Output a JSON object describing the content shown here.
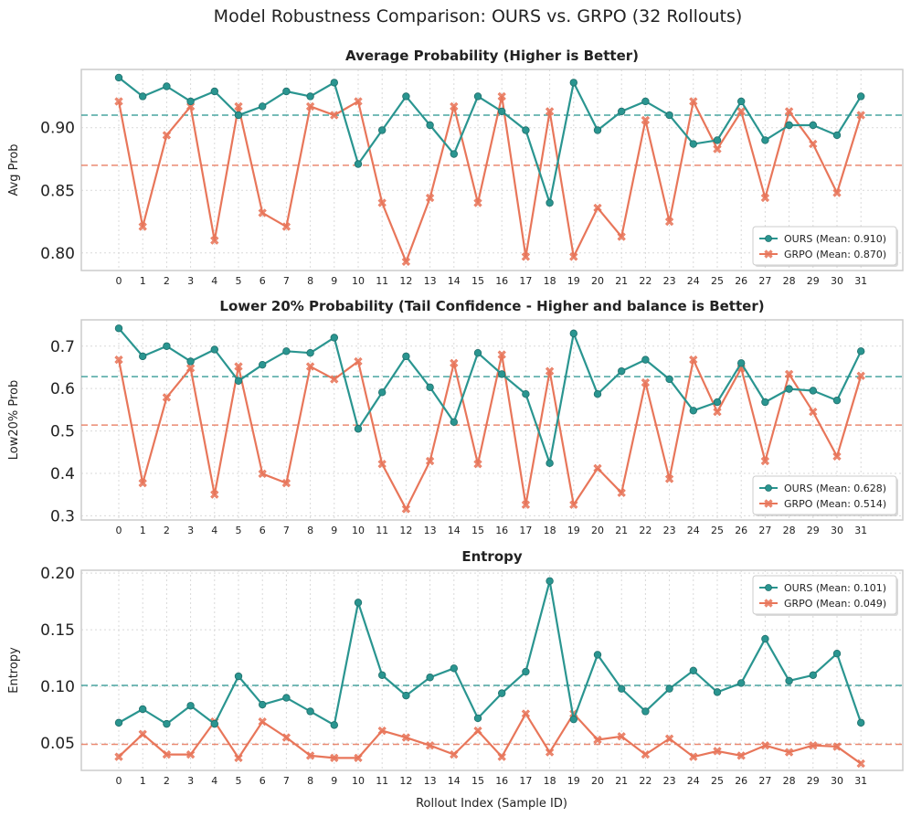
{
  "chart_data": {
    "type": "line",
    "suptitle": "Model Robustness Comparison: OURS vs. GRPO (32 Rollouts)",
    "xlabel": "Rollout Index (Sample ID)",
    "x": [
      0,
      1,
      2,
      3,
      4,
      5,
      6,
      7,
      8,
      9,
      10,
      11,
      12,
      13,
      14,
      15,
      16,
      17,
      18,
      19,
      20,
      21,
      22,
      23,
      24,
      25,
      26,
      27,
      28,
      29,
      30,
      31
    ],
    "colors": {
      "ours": "#2a9590",
      "grpo": "#e8765a"
    },
    "panels": [
      {
        "title": "Average Probability (Higher is Better)",
        "ylabel": "Avg Prob",
        "ylim": [
          0.786,
          0.9465
        ],
        "yticks": [
          0.8,
          0.85,
          0.9
        ],
        "yticklabels": [
          "0.80",
          "0.85",
          "0.90"
        ],
        "legend_loc": "lower-right",
        "series": [
          {
            "name": "OURS",
            "legend": "OURS (Mean: 0.910)",
            "mean": 0.91,
            "values": [
              0.94,
              0.925,
              0.933,
              0.921,
              0.929,
              0.91,
              0.917,
              0.929,
              0.925,
              0.936,
              0.871,
              0.898,
              0.925,
              0.902,
              0.879,
              0.925,
              0.913,
              0.898,
              0.84,
              0.936,
              0.898,
              0.913,
              0.921,
              0.91,
              0.887,
              0.89,
              0.921,
              0.89,
              0.902,
              0.902,
              0.894,
              0.925
            ]
          },
          {
            "name": "GRPO",
            "legend": "GRPO (Mean: 0.870)",
            "mean": 0.87,
            "values": [
              0.921,
              0.821,
              0.894,
              0.917,
              0.81,
              0.917,
              0.832,
              0.821,
              0.917,
              0.91,
              0.921,
              0.84,
              0.793,
              0.844,
              0.917,
              0.84,
              0.925,
              0.797,
              0.913,
              0.797,
              0.836,
              0.813,
              0.906,
              0.825,
              0.921,
              0.883,
              0.913,
              0.844,
              0.913,
              0.887,
              0.848,
              0.91
            ]
          }
        ]
      },
      {
        "title": "Lower 20% Probability (Tail Confidence - Higher and balance is Better)",
        "ylabel": "Low20% Prob",
        "ylim": [
          0.29,
          0.762
        ],
        "yticks": [
          0.3,
          0.4,
          0.5,
          0.6,
          0.7
        ],
        "yticklabels": [
          "0.3",
          "0.4",
          "0.5",
          "0.6",
          "0.7"
        ],
        "legend_loc": "lower-right",
        "series": [
          {
            "name": "OURS",
            "legend": "OURS (Mean: 0.628)",
            "mean": 0.628,
            "values": [
              0.742,
              0.676,
              0.7,
              0.664,
              0.692,
              0.618,
              0.656,
              0.688,
              0.684,
              0.72,
              0.505,
              0.591,
              0.676,
              0.603,
              0.521,
              0.684,
              0.634,
              0.587,
              0.424,
              0.73,
              0.587,
              0.641,
              0.668,
              0.622,
              0.548,
              0.568,
              0.66,
              0.568,
              0.599,
              0.595,
              0.572,
              0.688
            ]
          },
          {
            "name": "GRPO",
            "legend": "GRPO (Mean: 0.514)",
            "mean": 0.514,
            "values": [
              0.668,
              0.377,
              0.579,
              0.648,
              0.35,
              0.652,
              0.399,
              0.377,
              0.652,
              0.622,
              0.664,
              0.422,
              0.316,
              0.429,
              0.66,
              0.422,
              0.68,
              0.326,
              0.641,
              0.326,
              0.412,
              0.354,
              0.614,
              0.387,
              0.668,
              0.545,
              0.648,
              0.429,
              0.634,
              0.545,
              0.44,
              0.63
            ]
          }
        ]
      },
      {
        "title": "Entropy",
        "ylabel": "Entropy",
        "ylim": [
          0.026,
          0.2025
        ],
        "yticks": [
          0.05,
          0.1,
          0.15,
          0.2
        ],
        "yticklabels": [
          "0.05",
          "0.10",
          "0.15",
          "0.20"
        ],
        "legend_loc": "upper-right",
        "series": [
          {
            "name": "OURS",
            "legend": "OURS (Mean: 0.101)",
            "mean": 0.101,
            "values": [
              0.068,
              0.08,
              0.067,
              0.083,
              0.067,
              0.109,
              0.084,
              0.09,
              0.078,
              0.066,
              0.174,
              0.11,
              0.092,
              0.108,
              0.116,
              0.072,
              0.094,
              0.113,
              0.193,
              0.071,
              0.128,
              0.098,
              0.078,
              0.098,
              0.114,
              0.095,
              0.103,
              0.142,
              0.105,
              0.11,
              0.129,
              0.068
            ]
          },
          {
            "name": "GRPO",
            "legend": "GRPO (Mean: 0.049)",
            "mean": 0.049,
            "values": [
              0.038,
              0.058,
              0.04,
              0.04,
              0.069,
              0.037,
              0.069,
              0.055,
              0.039,
              0.037,
              0.037,
              0.061,
              0.055,
              0.048,
              0.04,
              0.061,
              0.038,
              0.076,
              0.042,
              0.076,
              0.053,
              0.056,
              0.04,
              0.054,
              0.038,
              0.043,
              0.039,
              0.048,
              0.042,
              0.048,
              0.047,
              0.032
            ]
          }
        ]
      }
    ]
  }
}
